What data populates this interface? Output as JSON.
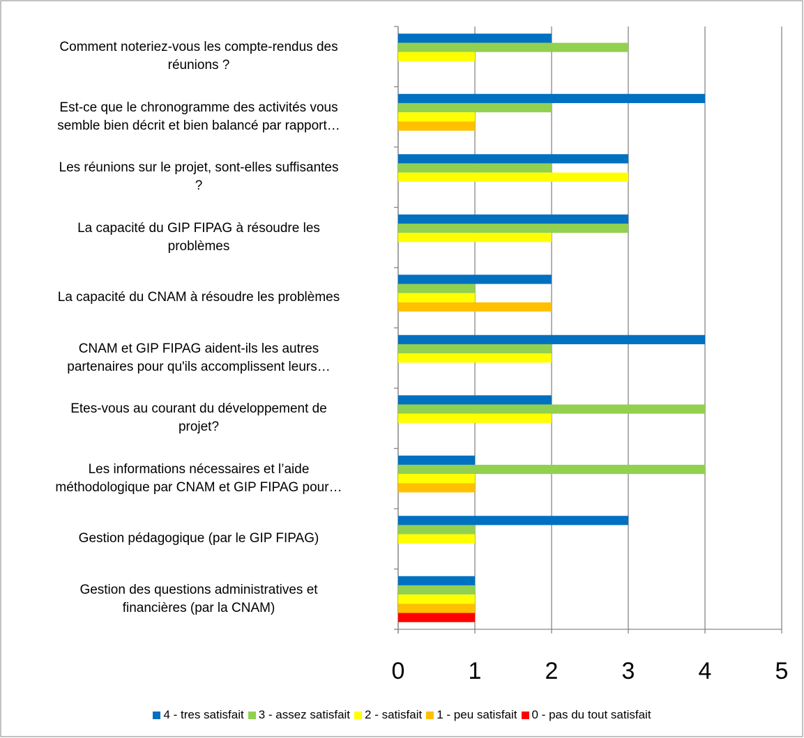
{
  "chart_data": {
    "type": "bar",
    "orientation": "horizontal",
    "categories": [
      "Comment noteriez-vous les compte-rendus des\nréunions ?",
      "Est-ce que le chronogramme des activités vous\nsemble bien décrit et bien balancé par rapport…",
      "Les réunions sur le projet,  sont-elles suffisantes\n?",
      "La capacité du GIP FIPAG à résoudre les\nproblèmes",
      "La capacité du CNAM à résoudre les problèmes",
      "CNAM et GIP FIPAG aident-ils les autres\npartenaires pour qu'ils accomplissent leurs…",
      "Etes-vous au courant du développement de\nprojet?",
      "Les informations nécessaires et l’aide\nméthodologique par CNAM et GIP FIPAG pour…",
      "Gestion pédagogique (par le GIP FIPAG)",
      "Gestion des questions administratives et\nfinancières (par la CNAM)"
    ],
    "series": [
      {
        "name": "4 - tres satisfait",
        "color": "#0070c0",
        "values": [
          2,
          4,
          3,
          3,
          2,
          4,
          2,
          1,
          3,
          1
        ]
      },
      {
        "name": "3 - assez satisfait",
        "color": "#92d050",
        "values": [
          3,
          2,
          2,
          3,
          1,
          2,
          4,
          4,
          1,
          1
        ]
      },
      {
        "name": "2 - satisfait",
        "color": "#ffff00",
        "values": [
          1,
          1,
          3,
          2,
          1,
          2,
          2,
          1,
          1,
          1
        ]
      },
      {
        "name": "1 - peu satisfait",
        "color": "#ffc000",
        "values": [
          0,
          1,
          0,
          0,
          2,
          0,
          0,
          1,
          0,
          1
        ]
      },
      {
        "name": "0 - pas du tout satisfait",
        "color": "#ff0000",
        "values": [
          0,
          0,
          0,
          0,
          0,
          0,
          0,
          0,
          0,
          1
        ]
      }
    ],
    "xlim": [
      0,
      5
    ],
    "xticks": [
      0,
      1,
      2,
      3,
      4,
      5
    ],
    "grid": true,
    "legend": "bottom"
  }
}
